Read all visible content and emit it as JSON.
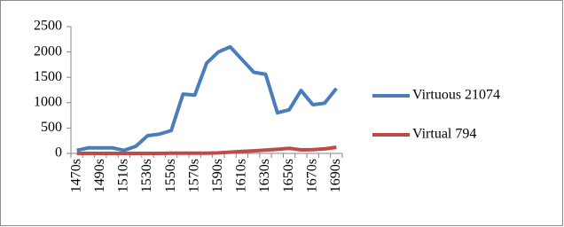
{
  "chart_data": {
    "type": "line",
    "categories": [
      "1470s",
      null,
      "1490s",
      null,
      "1510s",
      null,
      "1530s",
      null,
      "1550s",
      null,
      "1570s",
      null,
      "1590s",
      null,
      "1610s",
      null,
      "1630s",
      null,
      "1650s",
      null,
      "1670s",
      null,
      "1690s"
    ],
    "series": [
      {
        "name": "Virtuous 21074",
        "color": "#4a7ebb",
        "values": [
          60,
          110,
          110,
          110,
          60,
          140,
          350,
          380,
          450,
          1170,
          1150,
          1780,
          2000,
          2100,
          1850,
          1600,
          1560,
          800,
          860,
          1240,
          960,
          990,
          1280
        ]
      },
      {
        "name": "Virtual 794",
        "color": "#be4b48",
        "values": [
          0,
          0,
          0,
          0,
          0,
          0,
          0,
          0,
          5,
          5,
          5,
          5,
          10,
          25,
          40,
          50,
          65,
          80,
          100,
          70,
          75,
          90,
          120
        ]
      }
    ],
    "ylim": [
      0,
      2500
    ],
    "yticks": [
      0,
      500,
      1000,
      1500,
      2000,
      2500
    ],
    "grid": false,
    "legend": "right"
  }
}
